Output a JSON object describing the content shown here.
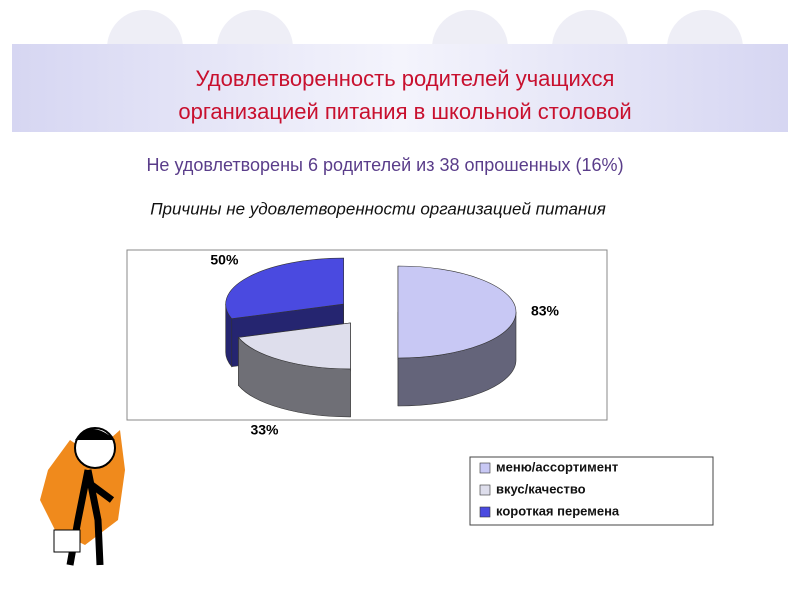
{
  "slide": {
    "title": [
      "Удовлетворенность родителей учащихся",
      "организацией питания в школьной столовой"
    ],
    "subtitle": "Не удовлетворены 6 родителей из 38 опрошенных (16%)"
  },
  "chart_data": {
    "type": "pie",
    "title": "Причины не удовлетворенности организацией питания",
    "categories": [
      "меню/ассортимент",
      "вкус/качество",
      "короткая перемена"
    ],
    "values": [
      83,
      33,
      50
    ],
    "value_labels": [
      "83%",
      "33%",
      "50%"
    ],
    "colors": [
      "#c8c8f4",
      "#dedeec",
      "#4a4ae0"
    ]
  }
}
